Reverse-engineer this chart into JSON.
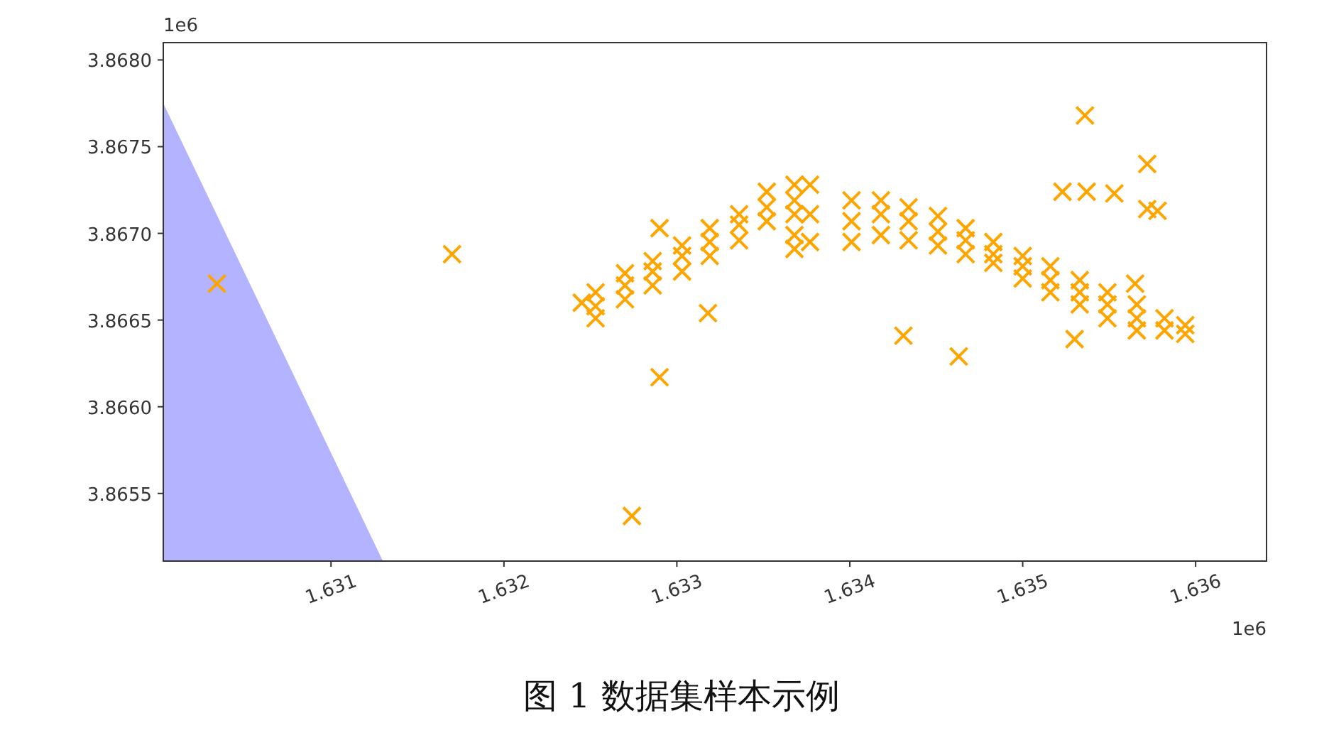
{
  "chart_data": {
    "type": "scatter",
    "title": "图 1 数据集样本示例",
    "annotations": [
      "1e6",
      "1e6"
    ],
    "xlim": [
      1.63003,
      1.63641
    ],
    "ylim": [
      3.86511,
      3.8681
    ],
    "xticks": [
      1.631,
      1.632,
      1.633,
      1.634,
      1.635,
      1.636
    ],
    "yticks": [
      {
        "value": 3.868,
        "label": "3.8680"
      },
      3.8675,
      {
        "value": 3.867,
        "label": "3.8670"
      },
      3.8665,
      {
        "value": 3.866,
        "label": "3.8660"
      },
      3.8655
    ],
    "grid": false,
    "series": [
      {
        "type": "area",
        "color": "#b3b3ff",
        "x": [
          1.63003,
          1.6313
        ],
        "values": [
          3.86775,
          3.86511
        ]
      },
      {
        "type": "scatter",
        "color": "#ffa500",
        "marker": "cross",
        "x": [
          1.63034,
          1.6317,
          1.63274,
          1.6329,
          1.63318,
          1.6329,
          1.63431,
          1.63463,
          1.63536,
          1.63523,
          1.63537,
          1.63553,
          1.63572,
          1.63572,
          1.63578,
          1.6353,
          1.63565,
          1.63245,
          1.63253,
          1.63253,
          1.63253,
          1.6327,
          1.6327,
          1.6327,
          1.63286,
          1.63286,
          1.63286,
          1.63303,
          1.63303,
          1.63303,
          1.63319,
          1.63319,
          1.63319,
          1.63336,
          1.63336,
          1.63336,
          1.63352,
          1.63352,
          1.63352,
          1.63368,
          1.63368,
          1.63368,
          1.63368,
          1.63368,
          1.63377,
          1.63377,
          1.63377,
          1.63401,
          1.63401,
          1.63401,
          1.63418,
          1.63418,
          1.63418,
          1.63434,
          1.63434,
          1.63434,
          1.63451,
          1.63451,
          1.63451,
          1.63467,
          1.63467,
          1.63467,
          1.63483,
          1.63483,
          1.63483,
          1.635,
          1.635,
          1.635,
          1.63516,
          1.63516,
          1.63516,
          1.63533,
          1.63533,
          1.63533,
          1.63549,
          1.63549,
          1.63549,
          1.63566,
          1.63566,
          1.63566,
          1.63582,
          1.63582,
          1.63594,
          1.63594
        ],
        "values": [
          3.86671,
          3.86688,
          3.86537,
          3.86617,
          3.86654,
          3.86703,
          3.86641,
          3.86629,
          3.86768,
          3.86724,
          3.86724,
          3.86723,
          3.8674,
          3.86714,
          3.86713,
          3.86639,
          3.86671,
          3.8666,
          3.86666,
          3.86658,
          3.86651,
          3.86677,
          3.8667,
          3.86662,
          3.86684,
          3.86678,
          3.8667,
          3.86693,
          3.86687,
          3.86678,
          3.86703,
          3.86695,
          3.86687,
          3.86711,
          3.86705,
          3.86696,
          3.86724,
          3.86715,
          3.86707,
          3.86728,
          3.86719,
          3.86711,
          3.86699,
          3.86691,
          3.86728,
          3.86711,
          3.86695,
          3.86719,
          3.86707,
          3.86695,
          3.86719,
          3.86711,
          3.86699,
          3.86715,
          3.86707,
          3.86696,
          3.8671,
          3.86701,
          3.86693,
          3.86703,
          3.86696,
          3.86688,
          3.86695,
          3.86688,
          3.86683,
          3.86687,
          3.86681,
          3.86674,
          3.86681,
          3.86673,
          3.86666,
          3.86673,
          3.86666,
          3.86659,
          3.86666,
          3.86659,
          3.86651,
          3.86659,
          3.86651,
          3.86644,
          3.86651,
          3.86644,
          3.86647,
          3.86642
        ]
      }
    ]
  }
}
